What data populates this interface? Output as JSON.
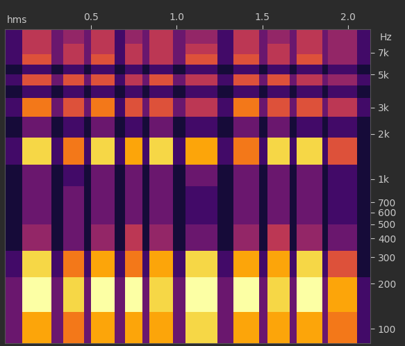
{
  "chart_data": {
    "type": "heatmap",
    "xlabel": "hms",
    "ylabel": "Hz",
    "xlim": [
      0,
      2.13
    ],
    "xticks": [
      0.5,
      1.0,
      1.5,
      2.0
    ],
    "ylim": [
      80,
      10000
    ],
    "log": "y",
    "yticks": [
      100,
      200,
      300,
      400,
      500,
      600,
      700,
      {
        "value": 1000,
        "label": "1k"
      },
      {
        "value": 2000,
        "label": "2k"
      },
      {
        "value": 3000,
        "label": "3k"
      },
      {
        "value": 5000,
        "label": "5k"
      },
      {
        "value": 7000,
        "label": "7k"
      }
    ],
    "grid": false,
    "time_edges": [
      0,
      0.1,
      0.27,
      0.34,
      0.46,
      0.5,
      0.64,
      0.7,
      0.8,
      0.84,
      0.98,
      1.05,
      1.24,
      1.33,
      1.48,
      1.53,
      1.66,
      1.7,
      1.85,
      1.88,
      2.05,
      2.13
    ],
    "freq_edges": [
      80,
      130,
      220,
      330,
      500,
      900,
      1250,
      1900,
      2600,
      3500,
      4200,
      5000,
      5800,
      6800,
      8000,
      10000
    ],
    "color_range": [
      0,
      10
    ],
    "cells": [
      [
        3,
        8,
        3,
        7,
        3,
        8,
        3,
        8,
        3,
        8,
        3,
        9,
        3,
        8,
        3,
        8,
        3,
        8,
        3,
        7,
        2
      ],
      [
        3,
        10,
        3,
        9,
        3,
        10,
        3,
        10,
        3,
        9,
        3,
        10,
        3,
        10,
        3,
        9,
        3,
        10,
        3,
        8,
        2
      ],
      [
        2,
        9,
        2,
        7,
        2,
        8,
        2,
        7,
        2,
        8,
        2,
        9,
        2,
        8,
        2,
        8,
        2,
        9,
        2,
        6,
        1
      ],
      [
        1,
        4,
        1,
        3,
        1,
        4,
        1,
        5,
        1,
        4,
        1,
        3,
        1,
        4,
        1,
        5,
        1,
        4,
        1,
        3,
        1
      ],
      [
        1,
        3,
        1,
        3,
        1,
        3,
        1,
        3,
        1,
        3,
        1,
        2,
        1,
        3,
        1,
        3,
        1,
        3,
        1,
        2,
        1
      ],
      [
        1,
        3,
        1,
        2,
        1,
        3,
        1,
        3,
        1,
        3,
        1,
        3,
        1,
        3,
        1,
        3,
        1,
        3,
        1,
        2,
        1
      ],
      [
        2,
        9,
        2,
        7,
        2,
        9,
        2,
        8,
        2,
        9,
        2,
        8,
        2,
        7,
        2,
        9,
        2,
        9,
        2,
        6,
        1
      ],
      [
        1,
        3,
        1,
        2,
        1,
        3,
        1,
        2,
        1,
        3,
        1,
        2,
        1,
        3,
        1,
        3,
        1,
        2,
        1,
        2,
        1
      ],
      [
        2,
        7,
        3,
        6,
        3,
        7,
        2,
        6,
        3,
        6,
        3,
        5,
        2,
        7,
        3,
        6,
        3,
        6,
        3,
        5,
        2
      ],
      [
        1,
        2,
        1,
        2,
        1,
        2,
        1,
        2,
        1,
        2,
        1,
        2,
        1,
        2,
        1,
        2,
        1,
        2,
        1,
        2,
        1
      ],
      [
        2,
        6,
        3,
        6,
        3,
        6,
        2,
        5,
        3,
        6,
        3,
        5,
        2,
        6,
        3,
        6,
        3,
        5,
        3,
        4,
        2
      ],
      [
        1,
        2,
        1,
        2,
        1,
        2,
        1,
        2,
        1,
        2,
        1,
        2,
        1,
        2,
        1,
        2,
        1,
        2,
        1,
        2,
        1
      ],
      [
        2,
        6,
        3,
        5,
        3,
        6,
        2,
        5,
        3,
        5,
        3,
        6,
        2,
        6,
        3,
        5,
        3,
        6,
        3,
        4,
        2
      ],
      [
        2,
        5,
        3,
        5,
        3,
        5,
        2,
        5,
        3,
        5,
        3,
        5,
        2,
        5,
        3,
        5,
        3,
        5,
        3,
        4,
        2
      ],
      [
        2,
        5,
        3,
        4,
        3,
        5,
        2,
        4,
        3,
        5,
        3,
        4,
        2,
        5,
        3,
        4,
        3,
        5,
        3,
        4,
        2
      ]
    ]
  }
}
